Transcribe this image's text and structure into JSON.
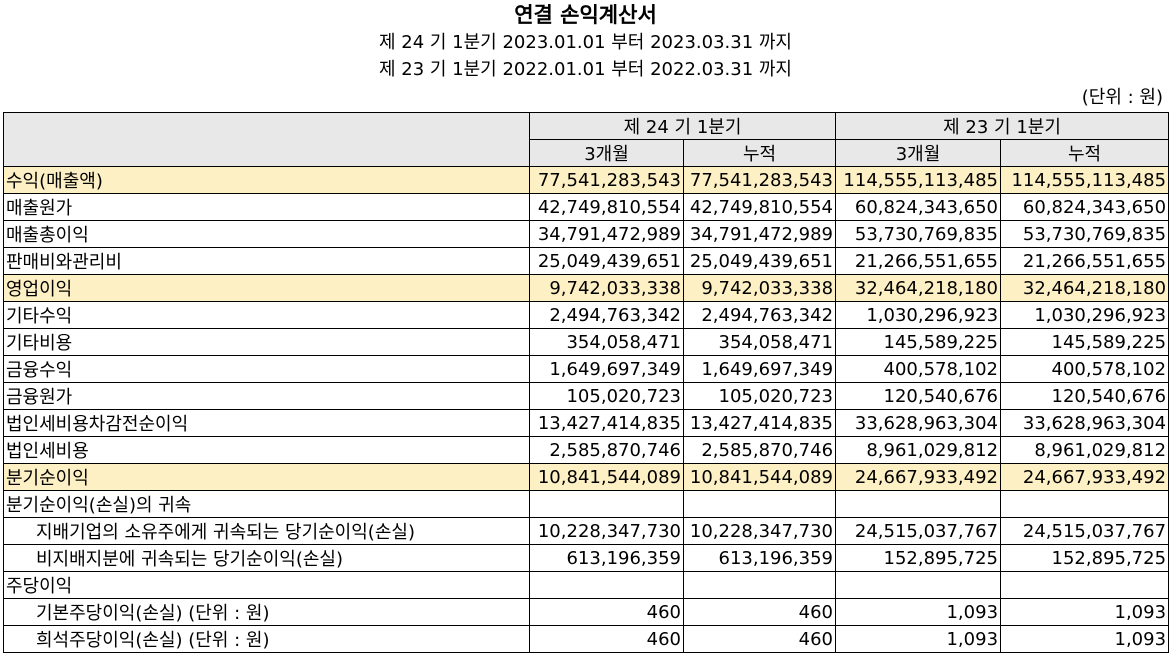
{
  "header": {
    "title": "연결 손익계산서",
    "period1": "제 24 기 1분기 2023.01.01 부터 2023.03.31 까지",
    "period2": "제 23 기 1분기 2022.01.01 부터 2022.03.31 까지",
    "unit": "(단위 : 원)"
  },
  "table": {
    "group_headers": [
      "제 24 기 1분기",
      "제 23 기 1분기"
    ],
    "sub_headers": [
      "3개월",
      "누적",
      "3개월",
      "누적"
    ],
    "rows": [
      {
        "label": "수익(매출액)",
        "values": [
          "77,541,283,543",
          "77,541,283,543",
          "114,555,113,485",
          "114,555,113,485"
        ]
      },
      {
        "label": "매출원가",
        "values": [
          "42,749,810,554",
          "42,749,810,554",
          "60,824,343,650",
          "60,824,343,650"
        ]
      },
      {
        "label": "매출총이익",
        "values": [
          "34,791,472,989",
          "34,791,472,989",
          "53,730,769,835",
          "53,730,769,835"
        ]
      },
      {
        "label": "판매비와관리비",
        "values": [
          "25,049,439,651",
          "25,049,439,651",
          "21,266,551,655",
          "21,266,551,655"
        ]
      },
      {
        "label": "영업이익",
        "values": [
          "9,742,033,338",
          "9,742,033,338",
          "32,464,218,180",
          "32,464,218,180"
        ]
      },
      {
        "label": "기타수익",
        "values": [
          "2,494,763,342",
          "2,494,763,342",
          "1,030,296,923",
          "1,030,296,923"
        ]
      },
      {
        "label": "기타비용",
        "values": [
          "354,058,471",
          "354,058,471",
          "145,589,225",
          "145,589,225"
        ]
      },
      {
        "label": "금융수익",
        "values": [
          "1,649,697,349",
          "1,649,697,349",
          "400,578,102",
          "400,578,102"
        ]
      },
      {
        "label": "금융원가",
        "values": [
          "105,020,723",
          "105,020,723",
          "120,540,676",
          "120,540,676"
        ]
      },
      {
        "label": "법인세비용차감전순이익",
        "values": [
          "13,427,414,835",
          "13,427,414,835",
          "33,628,963,304",
          "33,628,963,304"
        ]
      },
      {
        "label": "법인세비용",
        "values": [
          "2,585,870,746",
          "2,585,870,746",
          "8,961,029,812",
          "8,961,029,812"
        ]
      },
      {
        "label": "분기순이익",
        "values": [
          "10,841,544,089",
          "10,841,544,089",
          "24,667,933,492",
          "24,667,933,492"
        ]
      },
      {
        "label": "분기순이익(손실)의 귀속",
        "values": [
          "",
          "",
          "",
          ""
        ]
      },
      {
        "label": "지배기업의 소유주에게 귀속되는 당기순이익(손실)",
        "values": [
          "10,228,347,730",
          "10,228,347,730",
          "24,515,037,767",
          "24,515,037,767"
        ]
      },
      {
        "label": "비지배지분에 귀속되는 당기순이익(손실)",
        "values": [
          "613,196,359",
          "613,196,359",
          "152,895,725",
          "152,895,725"
        ]
      },
      {
        "label": "주당이익",
        "values": [
          "",
          "",
          "",
          ""
        ]
      },
      {
        "label": "기본주당이익(손실) (단위 : 원)",
        "values": [
          "460",
          "460",
          "1,093",
          "1,093"
        ]
      },
      {
        "label": "희석주당이익(손실) (단위 : 원)",
        "values": [
          "460",
          "460",
          "1,093",
          "1,093"
        ]
      }
    ]
  },
  "colors": {
    "highlight": "#fdf0c4",
    "header_bg": "#e8e8e8"
  }
}
